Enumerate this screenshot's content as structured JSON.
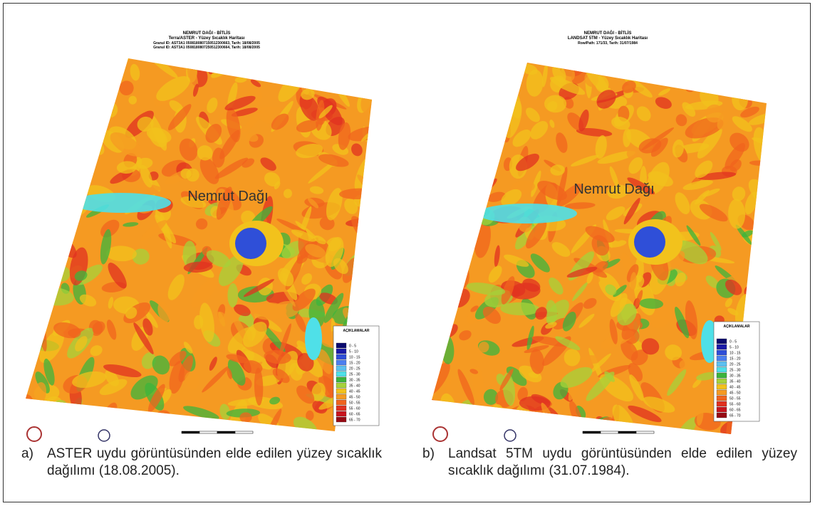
{
  "maps": [
    {
      "title": "NEMRUT DAĞI - BİTLİS",
      "subtitle": "Terra/ASTER - Yüzey Sıcaklık Haritası",
      "lines": [
        "Granul ID: AST3A1 0508180807150512300663, Tarih: 18/08/2005",
        "Granul ID: AST3A1 0508180807250512300664, Tarih: 18/08/2005"
      ],
      "label": "Nemrut Dağı",
      "legend_title": "AÇIKLAMALAR",
      "legend": [
        {
          "label": "0 - 5",
          "color": "#0a0a6e"
        },
        {
          "label": "5 - 10",
          "color": "#1a1aa8"
        },
        {
          "label": "10 - 15",
          "color": "#2f4fd8"
        },
        {
          "label": "15 - 20",
          "color": "#4c7ff0"
        },
        {
          "label": "20 - 25",
          "color": "#5cc0f0"
        },
        {
          "label": "25 - 30",
          "color": "#4fe0e8"
        },
        {
          "label": "30 - 35",
          "color": "#3cb43c"
        },
        {
          "label": "35 - 40",
          "color": "#a6d23a"
        },
        {
          "label": "40 - 45",
          "color": "#f2c21c"
        },
        {
          "label": "45 - 50",
          "color": "#f59a22"
        },
        {
          "label": "50 - 55",
          "color": "#f0641e"
        },
        {
          "label": "55 - 60",
          "color": "#e03020"
        },
        {
          "label": "60 - 65",
          "color": "#c8141e"
        },
        {
          "label": "65 - 70",
          "color": "#960a14"
        }
      ],
      "caption_letter": "a)",
      "caption": "ASTER uydu görüntüsünden elde edilen yüzey sıcaklık dağılımı (18.08.2005)."
    },
    {
      "title": "NEMRUT DAĞI - BİTLİS",
      "subtitle": "LANDSAT 5TM - Yüzey Sıcaklık Haritası",
      "lines": [
        "Row/Path: 171/33, Tarih: 31/07/1984"
      ],
      "label": "Nemrut Dağı",
      "legend_title": "AÇIKLAMALAR",
      "legend": [
        {
          "label": "0 - 5",
          "color": "#0a0a6e"
        },
        {
          "label": "5 - 10",
          "color": "#1a1aa8"
        },
        {
          "label": "10 - 15",
          "color": "#2f4fd8"
        },
        {
          "label": "15 - 20",
          "color": "#4c7ff0"
        },
        {
          "label": "20 - 25",
          "color": "#5cc0f0"
        },
        {
          "label": "25 - 30",
          "color": "#4fe0e8"
        },
        {
          "label": "30 - 35",
          "color": "#3cb43c"
        },
        {
          "label": "35 - 40",
          "color": "#a6d23a"
        },
        {
          "label": "40 - 45",
          "color": "#f2c21c"
        },
        {
          "label": "45 - 50",
          "color": "#f59a22"
        },
        {
          "label": "50 - 55",
          "color": "#f0641e"
        },
        {
          "label": "55 - 60",
          "color": "#e03020"
        },
        {
          "label": "60 - 65",
          "color": "#c8141e"
        },
        {
          "label": "65 - 70",
          "color": "#960a14"
        }
      ],
      "caption_letter": "b)",
      "caption": "Landsat 5TM uydu görüntüsünden elde edilen yüzey sıcaklık dağılımı (31.07.1984)."
    }
  ]
}
